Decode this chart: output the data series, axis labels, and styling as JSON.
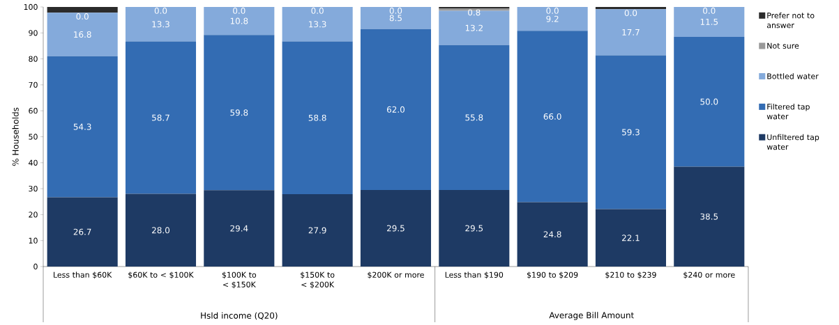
{
  "chart_data": {
    "type": "bar",
    "stacked": true,
    "ylabel": "% Households",
    "categories": [
      "Less than $60K",
      "$60K to < $100K",
      "$100K to < $150K",
      "$150K to < $200K",
      "$200K or more",
      "Less than $190",
      "$190 to $209",
      "$210 to $239",
      "$240 or more"
    ],
    "series": [
      {
        "name": "Unfiltered tap water",
        "color": "#1e3a64",
        "values": [
          26.7,
          28.0,
          29.4,
          27.9,
          29.5,
          29.5,
          24.8,
          22.1,
          38.5
        ],
        "value_labels": [
          "26.7",
          "28.0",
          "29.4",
          "27.9",
          "29.5",
          "29.5",
          "24.8",
          "22.1",
          "38.5"
        ]
      },
      {
        "name": "Filtered tap water",
        "color": "#336cb3",
        "values": [
          54.3,
          58.7,
          59.8,
          58.8,
          62.0,
          55.8,
          66.0,
          59.3,
          50.0
        ],
        "value_labels": [
          "54.3",
          "58.7",
          "59.8",
          "58.8",
          "62.0",
          "55.8",
          "66.0",
          "59.3",
          "50.0"
        ]
      },
      {
        "name": "Bottled water",
        "color": "#84aadb",
        "values": [
          16.8,
          13.3,
          10.8,
          13.3,
          8.5,
          13.2,
          9.2,
          17.7,
          11.5
        ],
        "value_labels": [
          "16.8",
          "13.3",
          "10.8",
          "13.3",
          "8.5",
          "13.2",
          "9.2",
          "17.7",
          "11.5"
        ]
      },
      {
        "name": "Not sure",
        "color": "#999999",
        "values": [
          0.0,
          0.0,
          0.0,
          0.0,
          0.0,
          0.8,
          0.0,
          0.0,
          0.0
        ],
        "value_labels": [
          "0.0",
          "0.0",
          "0.0",
          "0.0",
          "0.0",
          "0.8",
          "0.0",
          "0.0",
          "0.0"
        ]
      },
      {
        "name": "Prefer not to answer",
        "color": "#2b2b2b",
        "values": [
          2.2,
          0.0,
          0.0,
          0.0,
          0.0,
          0.7,
          0.0,
          0.9,
          0.0
        ]
      }
    ],
    "ylim": [
      0,
      100
    ],
    "yticks": [
      0,
      10,
      20,
      30,
      40,
      50,
      60,
      70,
      80,
      90,
      100
    ],
    "legend": "right",
    "annotations": [
      "Hsld income (Q20)",
      "Average Bill Amount"
    ]
  }
}
